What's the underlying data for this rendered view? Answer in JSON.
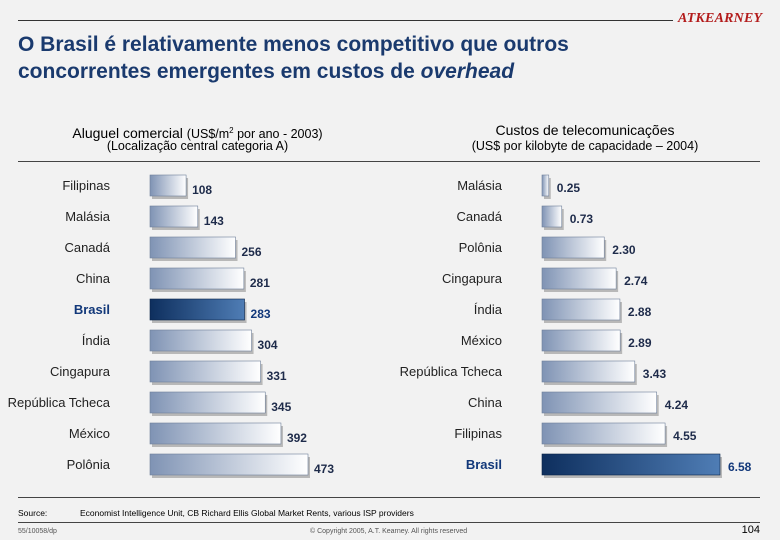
{
  "header": {
    "brand": "ATKEARNEY",
    "title_line1": "O Brasil é relativamente menos competitivo que outros",
    "title_line2_prefix": "concorrentes emergentes em custos de ",
    "title_line2_emphasis": "overhead"
  },
  "colors": {
    "bar_normal_dark": "#7f93b4",
    "bar_normal_light": "#ffffff",
    "bar_highlight_dark": "#0e2f5e",
    "bar_highlight_light": "#4f7db5",
    "highlight_text": "#12387a"
  },
  "chart_data": [
    {
      "type": "bar",
      "orientation": "horizontal",
      "title": "Aluguel comercial",
      "title_unit_prefix": "(US$/m",
      "title_unit_sup": "2",
      "title_unit_suffix": " por ano - 2003)",
      "subtitle": "(Localização central categoria A)",
      "categories": [
        "Filipinas",
        "Malásia",
        "Canadá",
        "China",
        "Brasil",
        "Índia",
        "Cingapura",
        "República Tcheca",
        "México",
        "Polônia"
      ],
      "values": [
        108,
        143,
        256,
        281,
        283,
        304,
        331,
        345,
        392,
        473
      ],
      "value_labels": [
        "108",
        "143",
        "256",
        "281",
        "283",
        "304",
        "331",
        "345",
        "392",
        "473"
      ],
      "highlight": "Brasil",
      "xlim": [
        0,
        473
      ]
    },
    {
      "type": "bar",
      "orientation": "horizontal",
      "title": "Custos de telecomunicações",
      "subtitle": "(US$ por kilobyte de capacidade – 2004)",
      "categories": [
        "Malásia",
        "Canadá",
        "Polônia",
        "Cingapura",
        "Índia",
        "México",
        "República Tcheca",
        "China",
        "Filipinas",
        "Brasil"
      ],
      "values": [
        0.25,
        0.73,
        2.3,
        2.74,
        2.88,
        2.89,
        3.43,
        4.24,
        4.55,
        6.58
      ],
      "value_labels": [
        "0.25",
        "0.73",
        "2.30",
        "2.74",
        "2.88",
        "2.89",
        "3.43",
        "4.24",
        "4.55",
        "6.58"
      ],
      "highlight": "Brasil",
      "xlim": [
        0,
        6.58
      ]
    }
  ],
  "footer": {
    "source_label": "Source:",
    "source_text": "Economist Intelligence Unit, CB Richard Ellis Global Market Rents, various ISP providers",
    "doc_id": "55/10058/dp",
    "copyright": "© Copyright 2005, A.T. Kearney. All rights reserved",
    "page": "104"
  }
}
